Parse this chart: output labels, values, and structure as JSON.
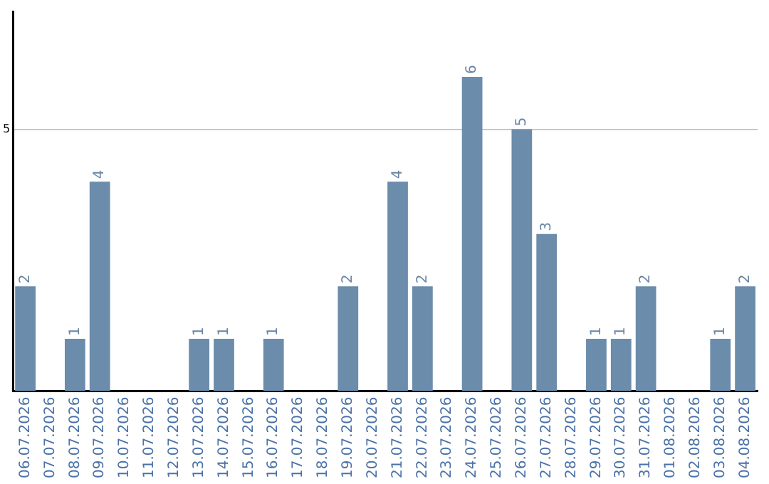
{
  "chart_data": {
    "type": "bar",
    "categories": [
      "06.07.2026",
      "07.07.2026",
      "08.07.2026",
      "09.07.2026",
      "10.07.2026",
      "11.07.2026",
      "12.07.2026",
      "13.07.2026",
      "14.07.2026",
      "15.07.2026",
      "16.07.2026",
      "17.07.2026",
      "18.07.2026",
      "19.07.2026",
      "20.07.2026",
      "21.07.2026",
      "22.07.2026",
      "23.07.2026",
      "24.07.2026",
      "25.07.2026",
      "26.07.2026",
      "27.07.2026",
      "28.07.2026",
      "29.07.2026",
      "30.07.2026",
      "31.07.2026",
      "01.08.2026",
      "02.08.2026",
      "03.08.2026",
      "04.08.2026"
    ],
    "values": [
      2,
      0,
      1,
      4,
      0,
      0,
      0,
      1,
      1,
      0,
      1,
      0,
      0,
      2,
      0,
      4,
      2,
      0,
      6,
      0,
      5,
      3,
      0,
      1,
      1,
      2,
      0,
      0,
      1,
      2
    ],
    "value_labels": [
      "2",
      null,
      "1",
      "4",
      null,
      null,
      null,
      "1",
      "1",
      null,
      "1",
      null,
      null,
      "2",
      null,
      "4",
      "2",
      null,
      "6",
      null,
      "5",
      "3",
      null,
      "1",
      "1",
      "2",
      null,
      null,
      "1",
      "2"
    ],
    "color": "#6b8cab",
    "ylim": [
      0,
      7.25
    ],
    "yticks": [
      5
    ],
    "grid": "y"
  }
}
